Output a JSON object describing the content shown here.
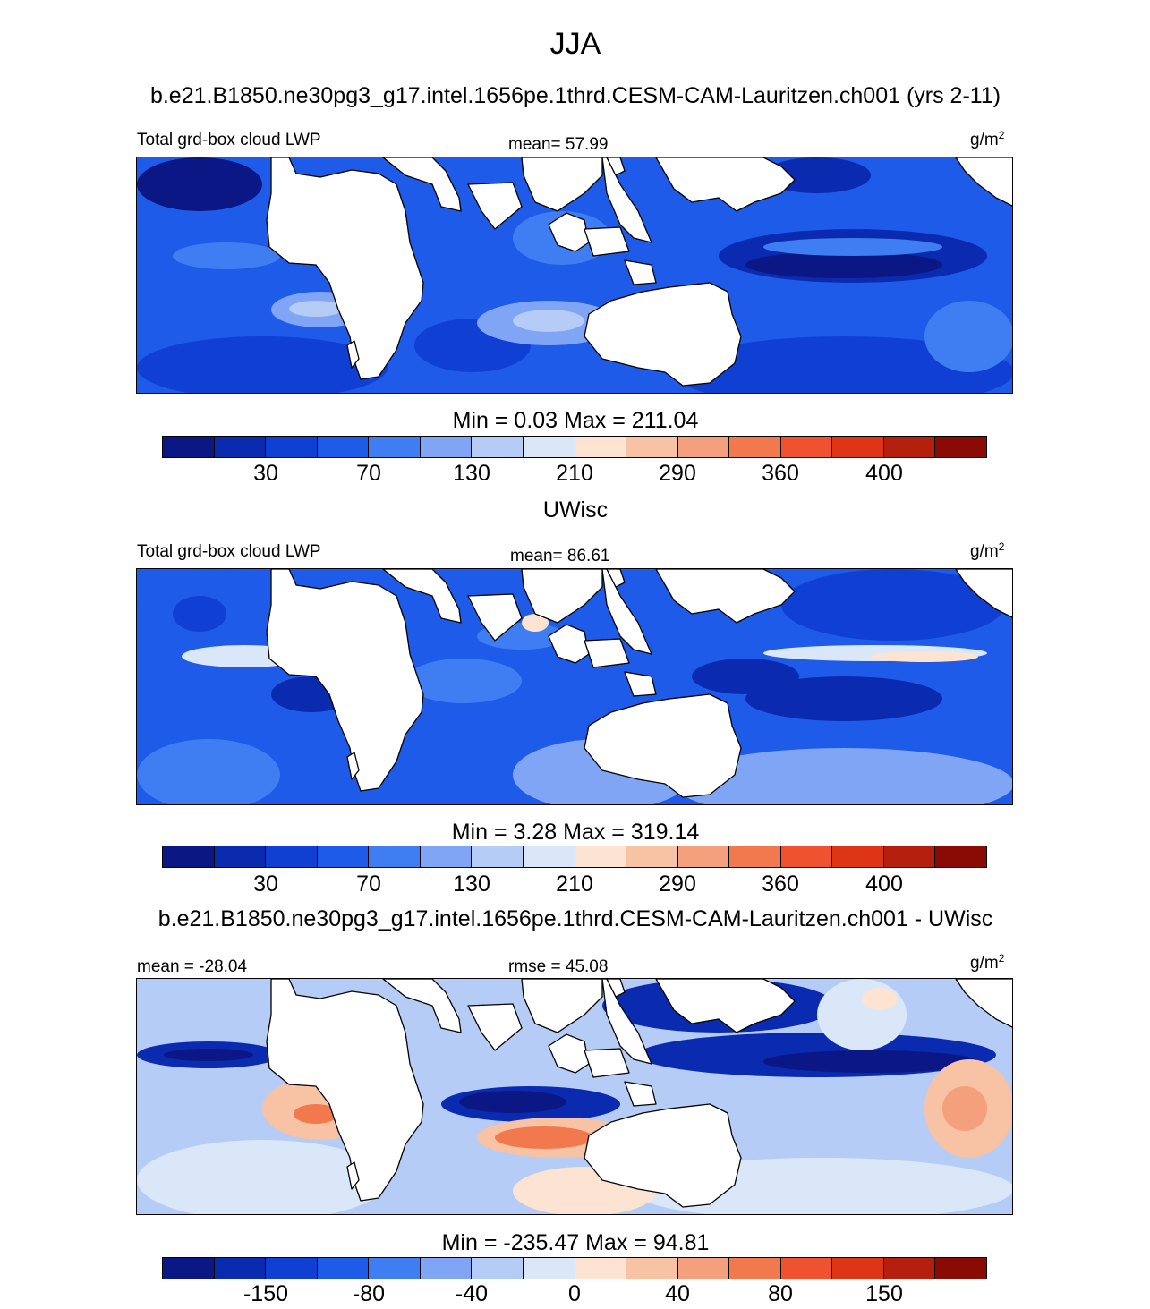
{
  "title": "JJA",
  "colors": [
    "#0a1784",
    "#0a2ab0",
    "#0f3fd3",
    "#1d5be8",
    "#3f7ef2",
    "#7fa5f4",
    "#b5ccf6",
    "#d9e7f8",
    "#fde3d2",
    "#f8c2a4",
    "#f4a07d",
    "#f2784e",
    "#f0522f",
    "#dd3516",
    "#b51f0d",
    "#8a0b05"
  ],
  "panels": [
    {
      "heading": "b.e21.B1850.ne30pg3_g17.intel.1656pe.1thrd.CESM-CAM-Lauritzen.ch001 (yrs 2-11)",
      "left_label": "Total grd-box cloud LWP",
      "center_label": "mean=  57.99",
      "units": "g/m",
      "units_sup": "2",
      "minmax": "Min =   0.03 Max = 211.04",
      "ticks": [
        "30",
        "70",
        "130",
        "210",
        "290",
        "360",
        "400"
      ],
      "map_type": "model"
    },
    {
      "heading": "UWisc",
      "left_label": "Total grd-box cloud LWP",
      "center_label": "mean=  86.61",
      "units": "g/m",
      "units_sup": "2",
      "minmax": "Min =   3.28 Max = 319.14",
      "ticks": [
        "30",
        "70",
        "130",
        "210",
        "290",
        "360",
        "400"
      ],
      "map_type": "obs"
    },
    {
      "heading": "b.e21.B1850.ne30pg3_g17.intel.1656pe.1thrd.CESM-CAM-Lauritzen.ch001 - UWisc",
      "left_label": "mean = -28.04",
      "center_label": "rmse =  45.08",
      "units": "g/m",
      "units_sup": "2",
      "minmax": "Min = -235.47 Max =  94.81",
      "ticks": [
        "-150",
        "-80",
        "-40",
        "0",
        "40",
        "80",
        "150"
      ],
      "map_type": "diff"
    }
  ]
}
